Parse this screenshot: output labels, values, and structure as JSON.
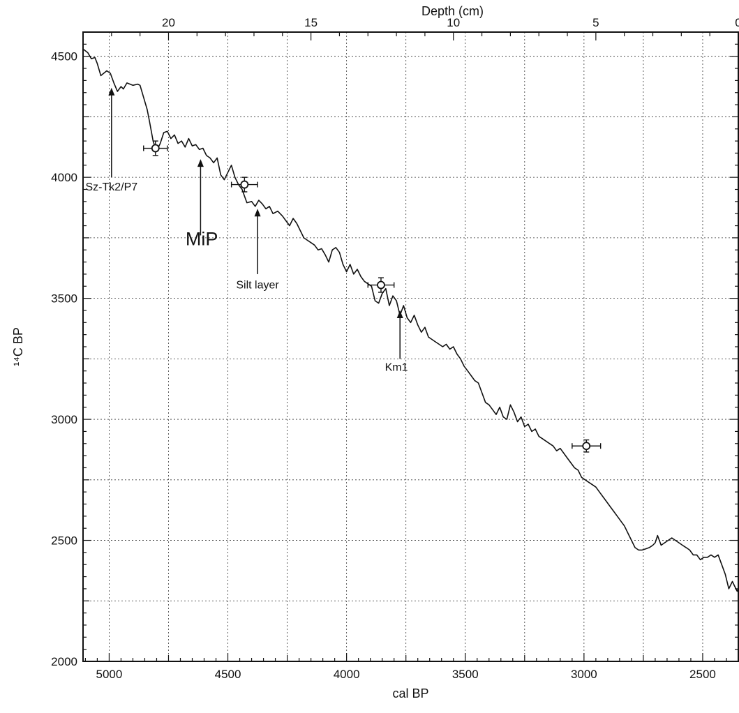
{
  "chart_data": {
    "type": "line",
    "title": "",
    "xlabel": "cal BP",
    "ylabel": "¹⁴C BP",
    "top_xlabel": "Depth (cm)",
    "xlim": [
      5110,
      2350
    ],
    "ylim": [
      2000,
      4600
    ],
    "x_reversed": true,
    "top_axis": {
      "label": "Depth (cm)",
      "ticks": [
        20,
        15,
        10,
        5,
        0
      ],
      "top_value_at_left": 23,
      "top_value_at_right": 0
    },
    "x_ticks": [
      5000,
      4500,
      4000,
      3500,
      3000,
      2500
    ],
    "y_ticks": [
      2000,
      2500,
      3000,
      3500,
      4000,
      4500
    ],
    "grid": true,
    "legend": "none",
    "series": [
      {
        "x": [
          5110,
          5090,
          5075,
          5060,
          5050,
          5035,
          5010,
          4995,
          4980,
          4965,
          4950,
          4940,
          4925,
          4900,
          4880,
          4870,
          4855,
          4840,
          4830,
          4815,
          4805,
          4800,
          4785,
          4770,
          4755,
          4740,
          4725,
          4710,
          4695,
          4680,
          4665,
          4650,
          4635,
          4620,
          4605,
          4590,
          4575,
          4560,
          4545,
          4530,
          4515,
          4500,
          4485,
          4470,
          4455,
          4440,
          4420,
          4400,
          4385,
          4370,
          4355,
          4340,
          4325,
          4310,
          4290,
          4270,
          4255,
          4240,
          4225,
          4210,
          4195,
          4180,
          4165,
          4150,
          4135,
          4120,
          4105,
          4090,
          4075,
          4060,
          4045,
          4030,
          4015,
          4000,
          3985,
          3970,
          3955,
          3940,
          3925,
          3910,
          3895,
          3880,
          3865,
          3850,
          3835,
          3820,
          3805,
          3790,
          3775,
          3760,
          3745,
          3730,
          3715,
          3700,
          3685,
          3670,
          3655,
          3640,
          3625,
          3610,
          3595,
          3580,
          3565,
          3550,
          3535,
          3520,
          3505,
          3490,
          3475,
          3460,
          3445,
          3430,
          3415,
          3400,
          3385,
          3370,
          3355,
          3340,
          3325,
          3310,
          3295,
          3280,
          3265,
          3250,
          3235,
          3220,
          3205,
          3190,
          3175,
          3160,
          3145,
          3130,
          3115,
          3100,
          3085,
          3070,
          3055,
          3040,
          3025,
          3010,
          2995,
          2980,
          2965,
          2950,
          2935,
          2920,
          2905,
          2890,
          2875,
          2860,
          2845,
          2830,
          2815,
          2800,
          2785,
          2770,
          2755,
          2740,
          2725,
          2710,
          2700,
          2690,
          2675,
          2660,
          2645,
          2630,
          2615,
          2600,
          2585,
          2570,
          2555,
          2540,
          2525,
          2510,
          2495,
          2480,
          2465,
          2450,
          2435,
          2420,
          2405,
          2390,
          2375,
          2365,
          2355,
          2350
        ],
        "y": [
          4530,
          4515,
          4490,
          4495,
          4470,
          4420,
          4440,
          4430,
          4390,
          4355,
          4375,
          4365,
          4390,
          4380,
          4385,
          4380,
          4330,
          4280,
          4230,
          4150,
          4120,
          4110,
          4140,
          4185,
          4190,
          4160,
          4175,
          4140,
          4150,
          4125,
          4160,
          4130,
          4135,
          4115,
          4120,
          4090,
          4080,
          4060,
          4080,
          4010,
          3990,
          4020,
          4050,
          4000,
          3970,
          3950,
          3895,
          3900,
          3880,
          3905,
          3890,
          3870,
          3880,
          3850,
          3860,
          3840,
          3820,
          3800,
          3830,
          3810,
          3780,
          3750,
          3740,
          3730,
          3720,
          3700,
          3705,
          3680,
          3650,
          3700,
          3710,
          3690,
          3640,
          3610,
          3640,
          3600,
          3620,
          3590,
          3570,
          3560,
          3550,
          3490,
          3480,
          3520,
          3540,
          3470,
          3510,
          3490,
          3430,
          3470,
          3420,
          3400,
          3430,
          3390,
          3360,
          3380,
          3340,
          3330,
          3320,
          3310,
          3300,
          3310,
          3290,
          3300,
          3270,
          3250,
          3220,
          3200,
          3180,
          3160,
          3150,
          3110,
          3070,
          3060,
          3040,
          3020,
          3050,
          3010,
          3000,
          3060,
          3030,
          2990,
          3010,
          2970,
          2980,
          2950,
          2960,
          2930,
          2920,
          2910,
          2900,
          2890,
          2870,
          2880,
          2860,
          2840,
          2820,
          2800,
          2790,
          2760,
          2750,
          2740,
          2730,
          2720,
          2700,
          2680,
          2660,
          2640,
          2620,
          2600,
          2580,
          2560,
          2530,
          2500,
          2470,
          2460,
          2460,
          2465,
          2470,
          2480,
          2490,
          2520,
          2480,
          2490,
          2500,
          2510,
          2500,
          2490,
          2480,
          2470,
          2460,
          2440,
          2440,
          2420,
          2430,
          2430,
          2440,
          2430,
          2440,
          2400,
          2360,
          2300,
          2330,
          2310,
          2290,
          2300
        ]
      }
    ],
    "data_points": [
      {
        "x": 4805,
        "y": 4120,
        "xerr": 50,
        "yerr": 30
      },
      {
        "x": 4430,
        "y": 3970,
        "xerr": 55,
        "yerr": 30
      },
      {
        "x": 3855,
        "y": 3555,
        "xerr": 55,
        "yerr": 30
      },
      {
        "x": 2990,
        "y": 2890,
        "xerr": 60,
        "yerr": 25
      }
    ],
    "annotations": [
      {
        "text": "Sz-Tk2/P7",
        "arrow_x": 4990,
        "arrow_from_y": 4000,
        "arrow_to_y": 4370,
        "text_x": 4990,
        "text_y": 3945,
        "size": "normal"
      },
      {
        "text": "MiP",
        "arrow_x": 4615,
        "arrow_from_y": 3760,
        "arrow_to_y": 4075,
        "text_x": 4610,
        "text_y": 3720,
        "size": "large"
      },
      {
        "text": "Silt layer",
        "arrow_x": 4375,
        "arrow_from_y": 3600,
        "arrow_to_y": 3870,
        "text_x": 4375,
        "text_y": 3540,
        "size": "normal"
      },
      {
        "text": "Km1",
        "arrow_x": 3775,
        "arrow_from_y": 3250,
        "arrow_to_y": 3450,
        "text_x": 3790,
        "text_y": 3200,
        "size": "normal"
      }
    ]
  }
}
